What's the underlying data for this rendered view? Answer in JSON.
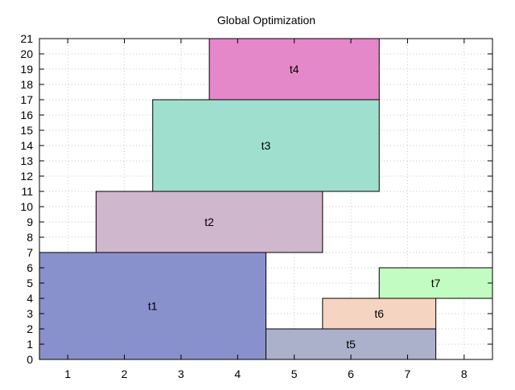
{
  "chart_data": {
    "type": "bar",
    "title": "Global Optimization",
    "xlabel": "",
    "ylabel": "",
    "xlim": [
      0.5,
      8.5
    ],
    "ylim": [
      0,
      21
    ],
    "x_ticks": [
      "1",
      "2",
      "3",
      "4",
      "5",
      "6",
      "7",
      "8"
    ],
    "y_ticks": [
      "0",
      "1",
      "2",
      "3",
      "4",
      "5",
      "6",
      "7",
      "8",
      "9",
      "10",
      "11",
      "12",
      "13",
      "14",
      "15",
      "16",
      "17",
      "18",
      "19",
      "20",
      "21"
    ],
    "grid": true,
    "legend": "none",
    "tasks": [
      {
        "label": "t1",
        "x_start": 0.5,
        "x_end": 4.5,
        "y_start": 0,
        "y_end": 7,
        "color": "#8891cc"
      },
      {
        "label": "t2",
        "x_start": 1.5,
        "x_end": 5.5,
        "y_start": 7,
        "y_end": 11,
        "color": "#cfb7cd"
      },
      {
        "label": "t3",
        "x_start": 2.5,
        "x_end": 6.5,
        "y_start": 11,
        "y_end": 17,
        "color": "#9ee0cd"
      },
      {
        "label": "t4",
        "x_start": 3.5,
        "x_end": 6.5,
        "y_start": 17,
        "y_end": 21,
        "color": "#e588ca"
      },
      {
        "label": "t5",
        "x_start": 4.5,
        "x_end": 7.5,
        "y_start": 0,
        "y_end": 2,
        "color": "#abb0cb"
      },
      {
        "label": "t6",
        "x_start": 5.5,
        "x_end": 7.5,
        "y_start": 2,
        "y_end": 4,
        "color": "#f5d4c2"
      },
      {
        "label": "t7",
        "x_start": 6.5,
        "x_end": 8.5,
        "y_start": 4,
        "y_end": 6,
        "color": "#c2fcc2"
      }
    ]
  }
}
